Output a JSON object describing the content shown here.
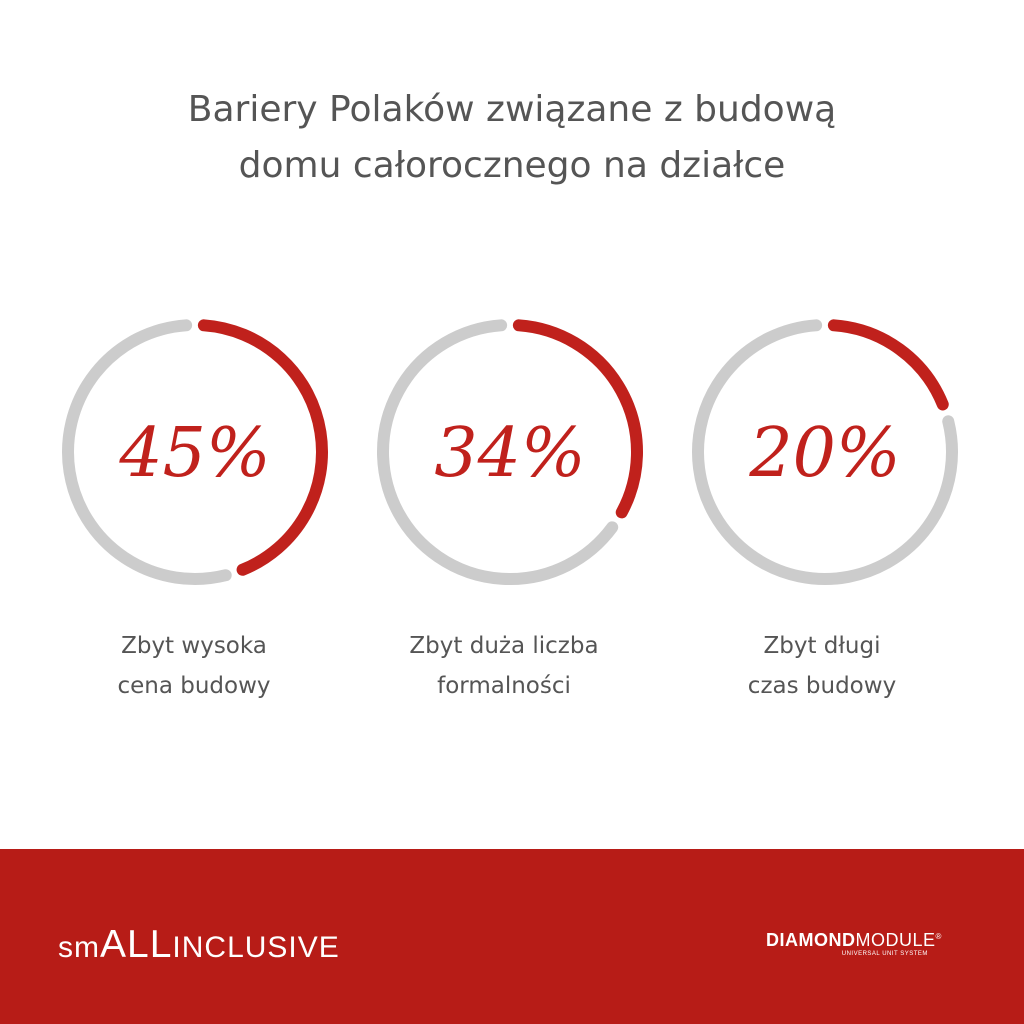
{
  "title_lines": [
    "Bariery Polaków związane z budową",
    "domu całorocznego na działce"
  ],
  "colors": {
    "accent": "#c0211c",
    "track": "#cccccc",
    "footer": "#b71c17",
    "text": "#555555"
  },
  "chart_data": {
    "type": "donut",
    "title": "Bariery Polaków związane z budową domu całorocznego na działce",
    "unit": "%",
    "categories": [
      "Zbyt wysoka cena budowy",
      "Zbyt duża liczba formalności",
      "Zbyt długi czas budowy"
    ],
    "values": [
      45,
      34,
      20
    ],
    "labels": [
      "45%",
      "34%",
      "20%"
    ],
    "max": 100
  },
  "captions": [
    [
      "Zbyt wysoka",
      "cena budowy"
    ],
    [
      "Zbyt duża liczba",
      "formalności"
    ],
    [
      "Zbyt długi",
      "czas budowy"
    ]
  ],
  "footer": {
    "brand_left": {
      "part1": "sm",
      "part2": "ALL",
      "part3": "INCLUSIVE"
    },
    "brand_right": {
      "bold": "DIAMOND",
      "regular": "MODULE",
      "mark": "®",
      "tagline": "UNIVERSAL UNIT SYSTEM"
    }
  }
}
